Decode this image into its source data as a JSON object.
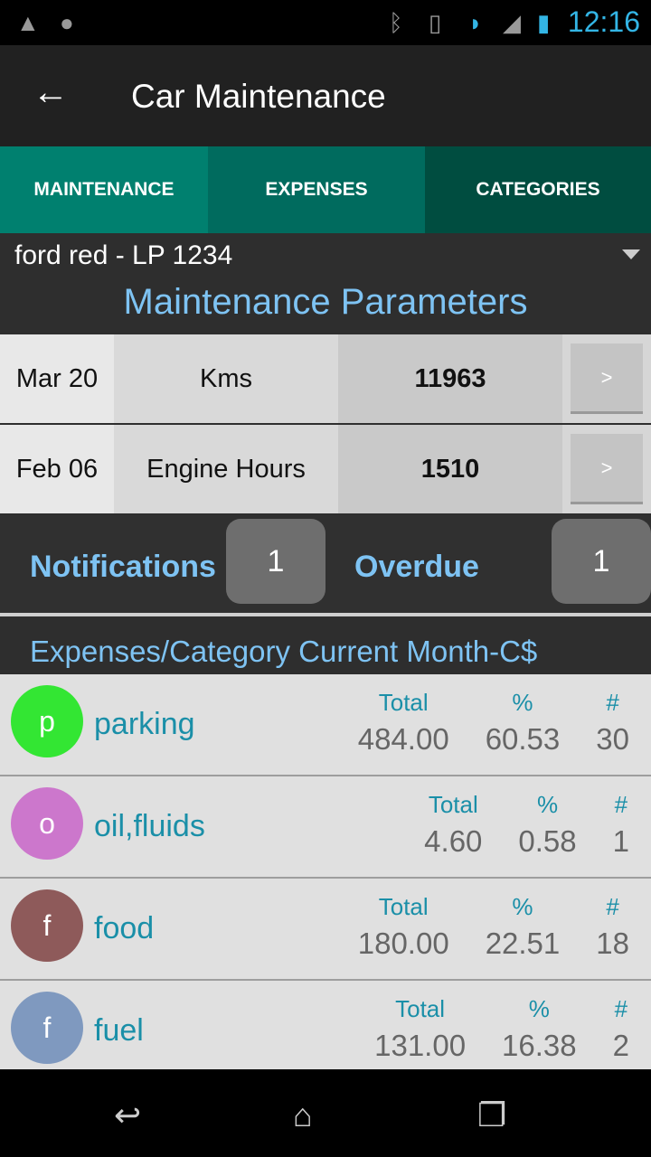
{
  "status_bar": {
    "time": "12:16",
    "icons": [
      "warning-icon",
      "android-icon",
      "bluetooth-icon",
      "vibrate-icon",
      "wifi-icon",
      "signal-icon",
      "battery-charging-icon"
    ]
  },
  "action_bar": {
    "title": "Car Maintenance",
    "back_icon": "arrow-left-icon"
  },
  "tabs": [
    {
      "label": "MAINTENANCE",
      "color": "#00806f"
    },
    {
      "label": "EXPENSES",
      "color": "#006b5e"
    },
    {
      "label": "CATEGORIES",
      "color": "#004d40"
    }
  ],
  "vehicle": {
    "selected": "ford red - LP 1234"
  },
  "parameters": {
    "title": "Maintenance Parameters",
    "rows": [
      {
        "date": "Mar 20",
        "name": "Kms",
        "value": "11963",
        "button": ">"
      },
      {
        "date": "Feb 06",
        "name": "Engine Hours",
        "value": "1510",
        "button": ">"
      }
    ]
  },
  "notifications": {
    "label": "Notifications",
    "count": "1",
    "overdue_label": "Overdue",
    "overdue_count": "1"
  },
  "expenses": {
    "title": "Expenses/Category Current Month-C$",
    "headers": {
      "total": "Total",
      "percent": "%",
      "count": "#"
    },
    "items": [
      {
        "letter": "p",
        "name": "parking",
        "total": "484.00",
        "percent": "60.53",
        "count": "30",
        "color": "#33e633"
      },
      {
        "letter": "o",
        "name": "oil,fluids",
        "total": "4.60",
        "percent": "0.58",
        "count": "1",
        "color": "#cc77cc"
      },
      {
        "letter": "f",
        "name": "food",
        "total": "180.00",
        "percent": "22.51",
        "count": "18",
        "color": "#8e5a5a"
      },
      {
        "letter": "f",
        "name": "fuel",
        "total": "131.00",
        "percent": "16.38",
        "count": "2",
        "color": "#7f99bf"
      }
    ]
  }
}
